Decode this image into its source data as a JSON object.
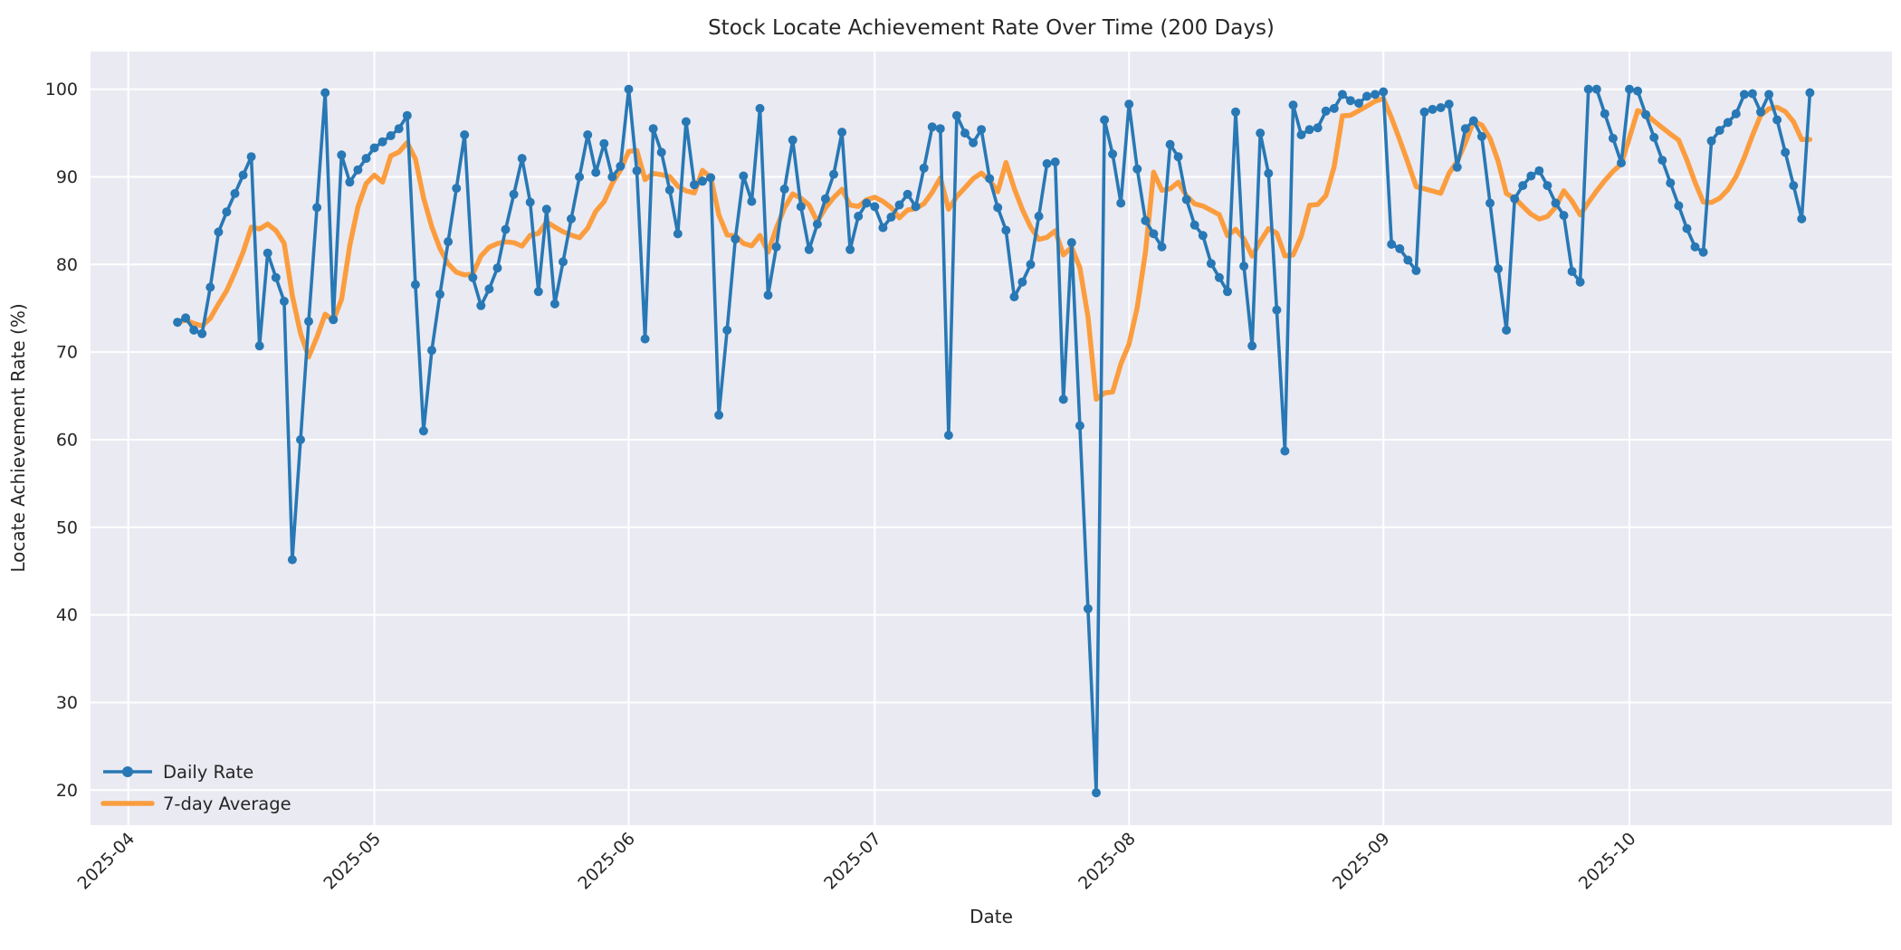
{
  "figure": {
    "background": "#ffffff",
    "plot_background": "#eaeaf2",
    "grid_color": "#ffffff",
    "text_color": "#262626"
  },
  "title": "Stock Locate Achievement Rate Over Time (200 Days)",
  "xlabel": "Date",
  "ylabel": "Locate Achievement Rate (%)",
  "legend": {
    "position": "lower left",
    "items": [
      {
        "label": "Daily Rate",
        "color": "#2878b5",
        "marker": true,
        "linewidth": 3.6
      },
      {
        "label": "7-day Average",
        "color": "#fb9d3f",
        "marker": false,
        "linewidth": 5.5
      }
    ]
  },
  "chart_data": {
    "type": "line",
    "title": "Stock Locate Achievement Rate Over Time (200 Days)",
    "xlabel": "Date",
    "ylabel": "Locate Achievement Rate (%)",
    "grid": true,
    "legend_position": "lower left",
    "start_date": "2025-04-07",
    "x_tick_labels": [
      "2025-04",
      "2025-05",
      "2025-06",
      "2025-07",
      "2025-08",
      "2025-09",
      "2025-10"
    ],
    "x_tick_day_offsets": [
      -6,
      24,
      55,
      85,
      116,
      147,
      177
    ],
    "xlim_days": [
      -10.6,
      209.0
    ],
    "y_ticks": [
      20,
      30,
      40,
      50,
      60,
      70,
      80,
      90,
      100
    ],
    "ylim": [
      16.0,
      104.3
    ],
    "series": [
      {
        "name": "Daily Rate",
        "color": "#2878b5",
        "marker": true,
        "values": [
          73.4,
          73.9,
          72.5,
          72.1,
          77.4,
          83.7,
          86.0,
          88.1,
          90.2,
          92.3,
          70.7,
          81.3,
          78.5,
          75.8,
          46.3,
          60.0,
          73.5,
          86.5,
          99.6,
          73.7,
          92.5,
          89.4,
          90.8,
          92.1,
          93.3,
          94.0,
          94.7,
          95.5,
          97.0,
          77.7,
          61.0,
          70.2,
          76.6,
          82.6,
          88.7,
          94.8,
          78.5,
          75.3,
          77.2,
          79.6,
          84.0,
          88.0,
          92.1,
          87.1,
          76.9,
          86.3,
          75.5,
          80.3,
          85.2,
          90.0,
          94.8,
          90.5,
          93.8,
          90.0,
          91.2,
          100.0,
          90.7,
          71.5,
          95.5,
          92.8,
          88.5,
          83.5,
          96.3,
          89.1,
          89.5,
          89.9,
          62.8,
          72.5,
          82.9,
          90.1,
          87.2,
          97.8,
          76.5,
          82.0,
          88.6,
          94.2,
          86.6,
          81.7,
          84.6,
          87.5,
          90.3,
          95.1,
          81.7,
          85.5,
          87.0,
          86.6,
          84.2,
          85.4,
          86.8,
          88.0,
          86.6,
          91.0,
          95.7,
          95.5,
          60.5,
          97.0,
          95.0,
          93.9,
          95.4,
          89.8,
          86.5,
          83.9,
          76.3,
          78.0,
          80.0,
          85.5,
          91.5,
          91.7,
          64.6,
          82.5,
          61.6,
          40.7,
          19.7,
          96.5,
          92.6,
          87.0,
          98.3,
          90.9,
          85.0,
          83.5,
          82.0,
          93.7,
          92.3,
          87.4,
          84.5,
          83.3,
          80.1,
          78.5,
          76.9,
          97.4,
          79.8,
          70.7,
          95.0,
          90.4,
          74.8,
          58.7,
          98.2,
          94.8,
          95.4,
          95.6,
          97.5,
          97.8,
          99.4,
          98.7,
          98.4,
          99.2,
          99.4,
          99.7,
          82.3,
          81.8,
          80.5,
          79.3,
          97.4,
          97.7,
          97.9,
          98.3,
          91.1,
          95.5,
          96.4,
          94.6,
          87.0,
          79.5,
          72.5,
          87.5,
          89.0,
          90.1,
          90.7,
          89.0,
          87.0,
          85.6,
          79.2,
          78.0,
          100.0,
          100.0,
          97.2,
          94.4,
          91.6,
          100.0,
          99.8,
          97.1,
          94.5,
          91.9,
          89.3,
          86.7,
          84.1,
          82.0,
          81.4,
          94.1,
          95.3,
          96.2,
          97.2,
          99.4,
          99.5,
          97.4,
          99.4,
          96.5,
          92.8,
          89.0,
          85.2,
          99.6
        ]
      },
      {
        "name": "7-day Average",
        "color": "#fb9d3f",
        "marker": false,
        "derived": "rolling_mean",
        "window": 7,
        "of": "Daily Rate"
      }
    ]
  }
}
